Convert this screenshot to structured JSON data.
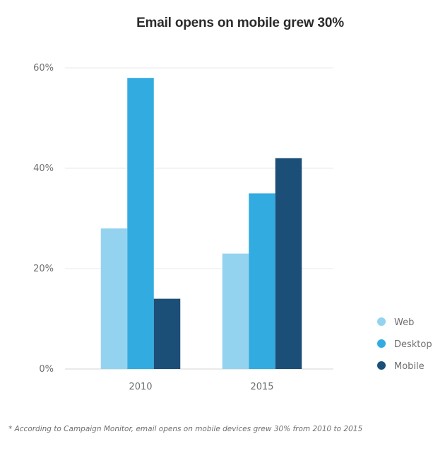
{
  "chart_data": {
    "type": "bar",
    "title": "Email opens on mobile grew 30%",
    "xlabel": "",
    "ylabel": "",
    "categories": [
      "2010",
      "2015"
    ],
    "series": [
      {
        "name": "Web",
        "values": [
          28,
          23
        ],
        "color": "#94d3ef"
      },
      {
        "name": "Desktop",
        "values": [
          58,
          35
        ],
        "color": "#32abe0"
      },
      {
        "name": "Mobile",
        "values": [
          14,
          42
        ],
        "color": "#1c4f77"
      }
    ],
    "ylim": [
      0,
      60
    ],
    "yticks": [
      0,
      20,
      40,
      60
    ],
    "ytick_labels": [
      "0%",
      "20%",
      "40%",
      "60%"
    ],
    "grid": true,
    "legend_position": "right"
  },
  "footnote": "* According to Campaign Monitor, email opens on mobile devices grew 30% from 2010 to 2015"
}
